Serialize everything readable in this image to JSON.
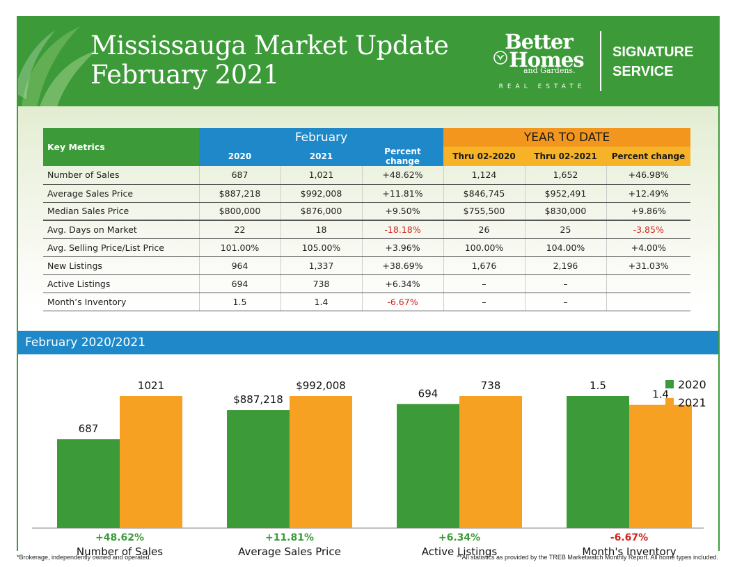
{
  "header": {
    "title_line1": "Mississauga Market Update",
    "title_line2": "February 2021",
    "logo": {
      "better": "Better",
      "homes": "Homes",
      "gardens": "and Gardens.",
      "real_estate": "REAL ESTATE",
      "icon": "sprout-icon"
    },
    "signature_line1": "SIGNATURE",
    "signature_line2": "SERVICE"
  },
  "table": {
    "key_metrics_label": "Key Metrics",
    "group_february": "February",
    "group_ytd": "YEAR TO DATE",
    "sub_headers": [
      "2020",
      "2021",
      "Percent change",
      "Thru 02-2020",
      "Thru 02-2021",
      "Percent change"
    ],
    "rows": [
      {
        "label": "Number of Sales",
        "cells": [
          "687",
          "1,021",
          "+48.62%",
          "1,124",
          "1,652",
          "+46.98%"
        ],
        "neg": []
      },
      {
        "label": "Average Sales Price",
        "cells": [
          "$887,218",
          "$992,008",
          "+11.81%",
          "$846,745",
          "$952,491",
          "+12.49%"
        ],
        "neg": []
      },
      {
        "label": "Median Sales Price",
        "cells": [
          "$800,000",
          "$876,000",
          "+9.50%",
          "$755,500",
          "$830,000",
          "+9.86%"
        ],
        "neg": []
      },
      {
        "label": "Avg. Days on Market",
        "cells": [
          "22",
          "18",
          "-18.18%",
          "26",
          "25",
          "-3.85%"
        ],
        "neg": [
          2,
          5
        ]
      },
      {
        "label": "Avg. Selling Price/List Price",
        "cells": [
          "101.00%",
          "105.00%",
          "+3.96%",
          "100.00%",
          "104.00%",
          "+4.00%"
        ],
        "neg": []
      },
      {
        "label": "New Listings",
        "cells": [
          "964",
          "1,337",
          "+38.69%",
          "1,676",
          "2,196",
          "+31.03%"
        ],
        "neg": []
      },
      {
        "label": "Active Listings",
        "cells": [
          "694",
          "738",
          "+6.34%",
          "–",
          "–",
          ""
        ],
        "neg": []
      },
      {
        "label": "Month’s Inventory",
        "cells": [
          "1.5",
          "1.4",
          "-6.67%",
          "–",
          "–",
          ""
        ],
        "neg": [
          2
        ]
      }
    ]
  },
  "chart_section_title": "February 2020/2021",
  "chart_data": {
    "type": "bar",
    "title": "February 2020/2021",
    "categories": [
      "Number of Sales",
      "Average Sales Price",
      "Active Listings",
      "Month's Inventory"
    ],
    "series": [
      {
        "name": "2020",
        "values": [
          687,
          887218,
          694,
          1.5
        ],
        "labels": [
          "687",
          "$887,218",
          "694",
          "1.5"
        ]
      },
      {
        "name": "2021",
        "values": [
          1021,
          992008,
          738,
          1.4
        ],
        "labels": [
          "1021",
          "$992,008",
          "738",
          "1.4"
        ]
      }
    ],
    "percent_changes": [
      "+48.62%",
      "+11.81%",
      "+6.34%",
      "-6.67%"
    ],
    "legend_position": "top-right",
    "colors": {
      "2020": "#3c9a38",
      "2021": "#f6a121"
    },
    "grid": false
  },
  "footer": {
    "left": "*Brokerage, independently owned and operated.",
    "right": "**All statistics as provided by the TREB Marketwatch Monthly Report. All home types included."
  },
  "colors": {
    "green": "#3c9a38",
    "blue": "#1e88c8",
    "orange": "#f3961e",
    "negative": "#d4201c"
  }
}
